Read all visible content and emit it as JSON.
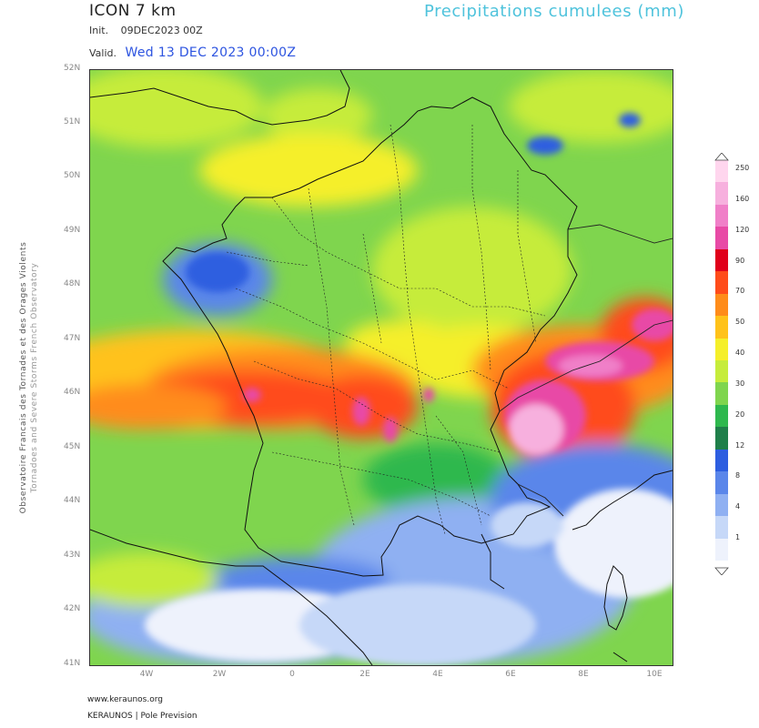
{
  "header": {
    "model": "ICON 7 km",
    "product": "Precipitations cumulees (mm)",
    "init_label": "Init.",
    "init_value": "09DEC2023 00Z",
    "valid_label": "Valid.",
    "valid_value": "Wed 13 DEC 2023 00:00Z"
  },
  "side_credit": {
    "line1": "Observatoire Francais des Tornades et des Orages Violents",
    "line2": "Tornadoes and Severe Storms French Observatory"
  },
  "axes": {
    "lat_labels": [
      "52N",
      "51N",
      "50N",
      "49N",
      "48N",
      "47N",
      "46N",
      "45N",
      "44N",
      "43N",
      "42N",
      "41N"
    ],
    "lon_labels": [
      "4W",
      "2W",
      "0",
      "2E",
      "4E",
      "6E",
      "8E",
      "10E"
    ]
  },
  "colorbar": {
    "ticks": [
      "250",
      "160",
      "120",
      "90",
      "70",
      "50",
      "40",
      "30",
      "20",
      "12",
      "8",
      "4",
      "1"
    ],
    "colors": [
      "#ffd6ee",
      "#f7b0de",
      "#f07fc8",
      "#e84aa6",
      "#e0001a",
      "#ff4c1a",
      "#ff8c1a",
      "#ffc21a",
      "#f5ef2a",
      "#c6ec3b",
      "#7fd54e",
      "#2eb84e",
      "#1f7f4a",
      "#2d5ee0",
      "#5a86ea",
      "#8fb0f2",
      "#c6d8f8",
      "#eef2fc"
    ]
  },
  "footer": {
    "url": "www.keraunos.org",
    "brand": "KERAUNOS | Pole Prevision"
  }
}
